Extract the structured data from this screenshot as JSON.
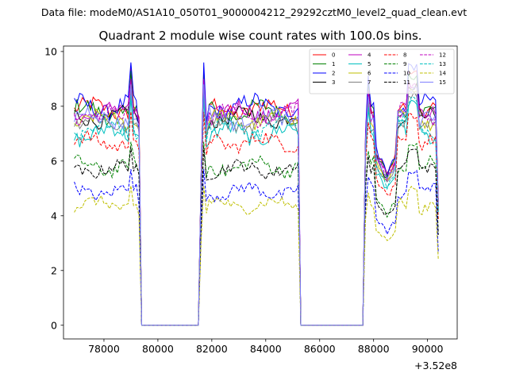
{
  "chart_data": {
    "type": "line",
    "suptitle": "Data file: modeM0/AS1A10_050T01_9000004212_29292cztM0_level2_quad_clean.evt",
    "title": "Quadrant 2 module wise count rates with 100.0s bins.",
    "xlabel": "",
    "ylabel": "",
    "x_offset_label": "+3.52e8",
    "xlim": [
      76500,
      91100
    ],
    "ylim": [
      -0.5,
      10.2
    ],
    "xticks": [
      78000,
      80000,
      82000,
      84000,
      86000,
      88000,
      90000
    ],
    "xtick_labels": [
      "78000",
      "80000",
      "82000",
      "84000",
      "86000",
      "88000",
      "90000"
    ],
    "yticks": [
      0,
      2,
      4,
      6,
      8,
      10
    ],
    "ytick_labels": [
      "0",
      "2",
      "4",
      "6",
      "8",
      "10"
    ],
    "grid": false,
    "legend_position": "top-right",
    "legend_columns": 4,
    "segments": [
      {
        "start": 76900,
        "end": 79300,
        "step": 100
      },
      {
        "start": 81600,
        "end": 85200,
        "step": 100
      },
      {
        "start": 87700,
        "end": 90400,
        "step": 100
      }
    ],
    "gaps": [
      {
        "from": 79400,
        "to": 81500
      },
      {
        "from": 85300,
        "to": 87600
      }
    ],
    "series": [
      {
        "name": "0",
        "color": "#ff0000",
        "dash": "solid",
        "level": 7.9,
        "noise": 0.28,
        "peak": 9.4,
        "end": 7.6
      },
      {
        "name": "1",
        "color": "#008000",
        "dash": "solid",
        "level": 7.8,
        "noise": 0.3,
        "peak": 9.3,
        "end": 7.5
      },
      {
        "name": "2",
        "color": "#0000ff",
        "dash": "solid",
        "level": 8.0,
        "noise": 0.3,
        "peak": 9.6,
        "end": 7.0
      },
      {
        "name": "3",
        "color": "#000000",
        "dash": "solid",
        "level": 7.6,
        "noise": 0.25,
        "peak": 8.9,
        "end": 7.3
      },
      {
        "name": "4",
        "color": "#bf00bf",
        "dash": "solid",
        "level": 7.8,
        "noise": 0.28,
        "peak": 9.0,
        "end": 7.5
      },
      {
        "name": "5",
        "color": "#00bfbf",
        "dash": "solid",
        "level": 7.0,
        "noise": 0.3,
        "peak": 8.3,
        "end": 6.9
      },
      {
        "name": "6",
        "color": "#bfbf00",
        "dash": "solid",
        "level": 7.5,
        "noise": 0.25,
        "peak": 8.8,
        "end": 7.2
      },
      {
        "name": "7",
        "color": "#808080",
        "dash": "solid",
        "level": 7.4,
        "noise": 0.25,
        "peak": 8.6,
        "end": 7.1
      },
      {
        "name": "8",
        "color": "#ff0000",
        "dash": "dashed",
        "level": 6.7,
        "noise": 0.25,
        "peak": 7.8,
        "end": 6.4
      },
      {
        "name": "9",
        "color": "#008000",
        "dash": "dashed",
        "level": 5.8,
        "noise": 0.25,
        "peak": 6.7,
        "end": 5.6
      },
      {
        "name": "10",
        "color": "#0000ff",
        "dash": "dashed",
        "level": 4.9,
        "noise": 0.22,
        "peak": 5.7,
        "end": 4.4
      },
      {
        "name": "11",
        "color": "#000000",
        "dash": "dashed",
        "level": 5.7,
        "noise": 0.22,
        "peak": 6.5,
        "end": 5.5
      },
      {
        "name": "12",
        "color": "#bf00bf",
        "dash": "dashed",
        "level": 7.7,
        "noise": 0.28,
        "peak": 8.9,
        "end": 7.5
      },
      {
        "name": "13",
        "color": "#00bfbf",
        "dash": "dashed",
        "level": 7.2,
        "noise": 0.28,
        "peak": 8.4,
        "end": 6.9
      },
      {
        "name": "14",
        "color": "#bfbf00",
        "dash": "dashed",
        "level": 4.4,
        "noise": 0.2,
        "peak": 5.1,
        "end": 4.0
      },
      {
        "name": "15",
        "color": "#8080ff",
        "dash": "solid",
        "level": 7.6,
        "noise": 0.28,
        "peak": 8.8,
        "end": 7.3
      }
    ]
  }
}
